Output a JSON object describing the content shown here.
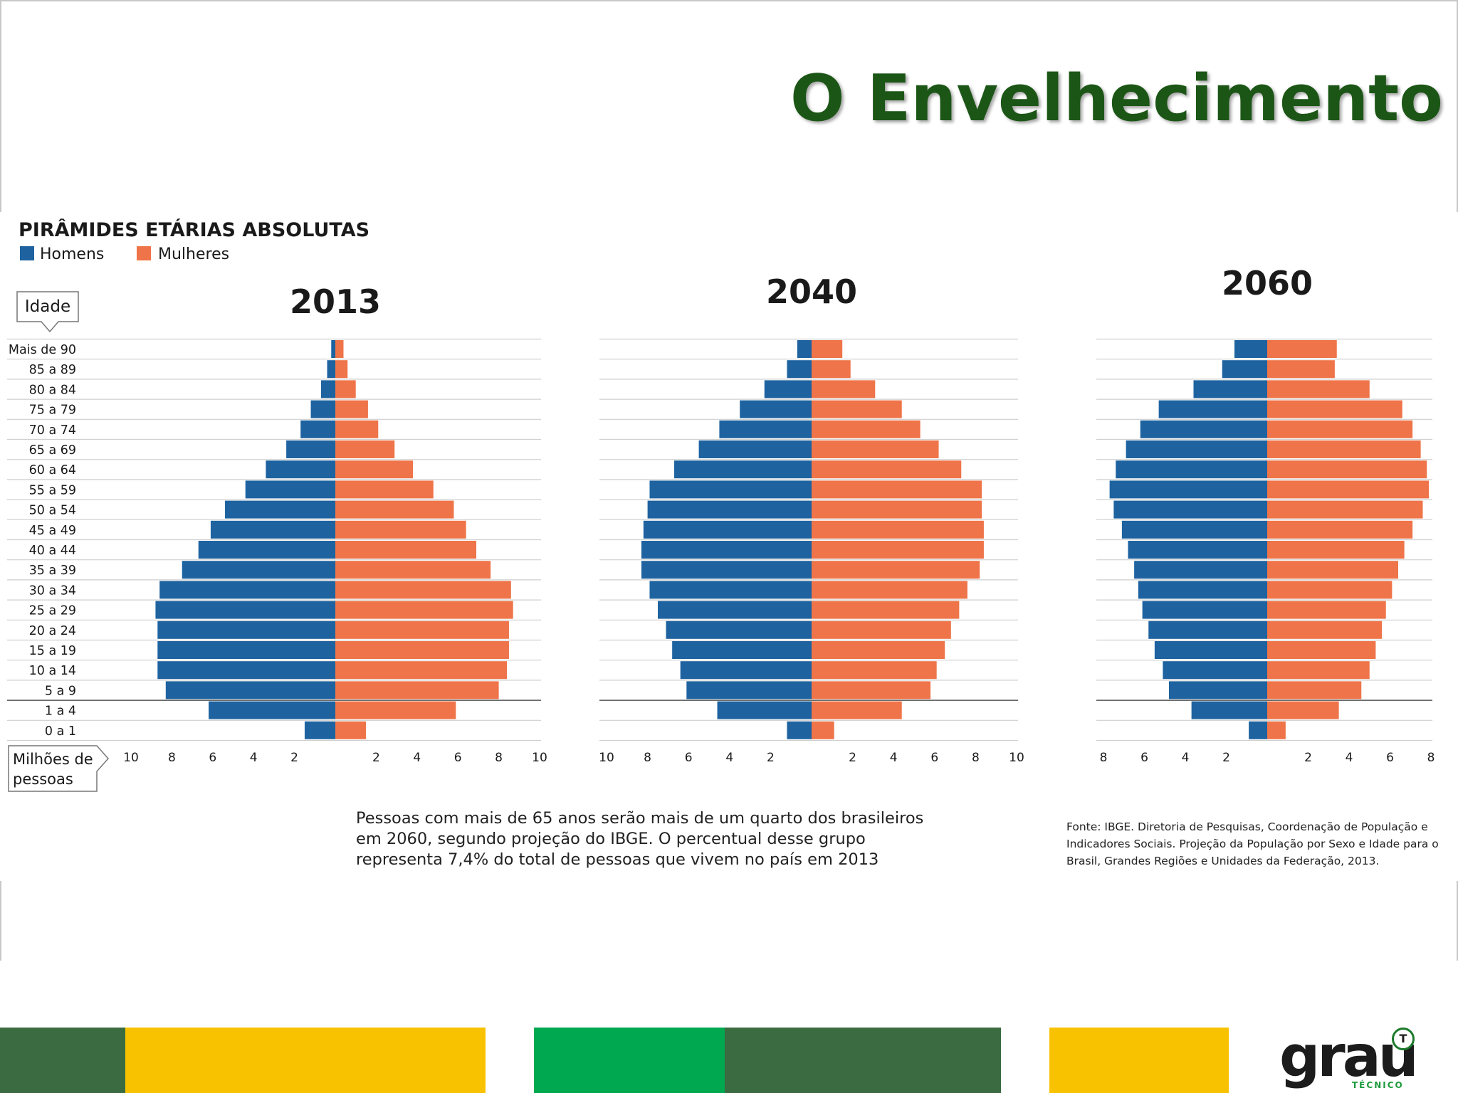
{
  "slide": {
    "title": "O Envelhecimento"
  },
  "chart_data": {
    "type": "population-pyramid",
    "title": "PIRÂMIDES ETÁRIAS ABSOLUTAS",
    "legend": [
      {
        "name": "Homens",
        "color": "#1e63a0"
      },
      {
        "name": "Mulheres",
        "color": "#ef7449"
      }
    ],
    "y_axis_label": "Idade",
    "x_axis_label": "Milhões de pessoas",
    "age_groups": [
      "Mais de 90",
      "85 a 89",
      "80 a 84",
      "75 a 79",
      "70 a 74",
      "65 a 69",
      "60 a 64",
      "55 a 59",
      "50 a 54",
      "45 a 49",
      "40 a 44",
      "35 a 39",
      "30 a 34",
      "25 a 29",
      "20 a 24",
      "15 a 19",
      "10 a 14",
      "5 a 9",
      "1 a 4",
      "0 a 1"
    ],
    "pyramids": [
      {
        "year": "2013",
        "xlim": 10,
        "ticks": [
          "10",
          "8",
          "6",
          "4",
          "2",
          "2",
          "4",
          "6",
          "8",
          "10"
        ],
        "men": [
          0.2,
          0.4,
          0.7,
          1.2,
          1.7,
          2.4,
          3.4,
          4.4,
          5.4,
          6.1,
          6.7,
          7.5,
          8.6,
          8.8,
          8.7,
          8.7,
          8.7,
          8.3,
          6.2,
          1.5
        ],
        "women": [
          0.4,
          0.6,
          1.0,
          1.6,
          2.1,
          2.9,
          3.8,
          4.8,
          5.8,
          6.4,
          6.9,
          7.6,
          8.6,
          8.7,
          8.5,
          8.5,
          8.4,
          8.0,
          5.9,
          1.5
        ]
      },
      {
        "year": "2040",
        "xlim": 10,
        "ticks": [
          "10",
          "8",
          "6",
          "4",
          "2",
          "2",
          "4",
          "6",
          "8",
          "10"
        ],
        "men": [
          0.7,
          1.2,
          2.3,
          3.5,
          4.5,
          5.5,
          6.7,
          7.9,
          8.0,
          8.2,
          8.3,
          8.3,
          7.9,
          7.5,
          7.1,
          6.8,
          6.4,
          6.1,
          4.6,
          1.2
        ],
        "women": [
          1.5,
          1.9,
          3.1,
          4.4,
          5.3,
          6.2,
          7.3,
          8.3,
          8.3,
          8.4,
          8.4,
          8.2,
          7.6,
          7.2,
          6.8,
          6.5,
          6.1,
          5.8,
          4.4,
          1.1
        ]
      },
      {
        "year": "2060",
        "xlim": 8,
        "ticks": [
          "8",
          "6",
          "4",
          "2",
          "2",
          "4",
          "6",
          "8"
        ],
        "men": [
          1.6,
          2.2,
          3.6,
          5.3,
          6.2,
          6.9,
          7.4,
          7.7,
          7.5,
          7.1,
          6.8,
          6.5,
          6.3,
          6.1,
          5.8,
          5.5,
          5.1,
          4.8,
          3.7,
          0.9
        ],
        "women": [
          3.4,
          3.3,
          5.0,
          6.6,
          7.1,
          7.5,
          7.8,
          7.9,
          7.6,
          7.1,
          6.7,
          6.4,
          6.1,
          5.8,
          5.6,
          5.3,
          5.0,
          4.6,
          3.5,
          0.9
        ]
      }
    ]
  },
  "caption": "Pessoas com mais de 65 anos serão mais de um quarto dos brasileiros em 2060, segundo projeção do IBGE. O percentual desse grupo representa 7,4% do total de pessoas que vivem no país em 2013",
  "source": "Fonte: IBGE. Diretoria de Pesquisas, Coordenação de População e Indicadores Sociais. Projeção da População por Sexo e Idade para o Brasil, Grandes Regiões e Unidades da Federação, 2013.",
  "footer": {
    "colors": [
      "#3b6c41",
      "#f9c200",
      "#ffffff",
      "#00a850",
      "#3b6c41",
      "#ffffff",
      "#f9c200"
    ]
  },
  "logo": {
    "main": "grau",
    "badge": "T",
    "sub": "TÉCNICO"
  }
}
